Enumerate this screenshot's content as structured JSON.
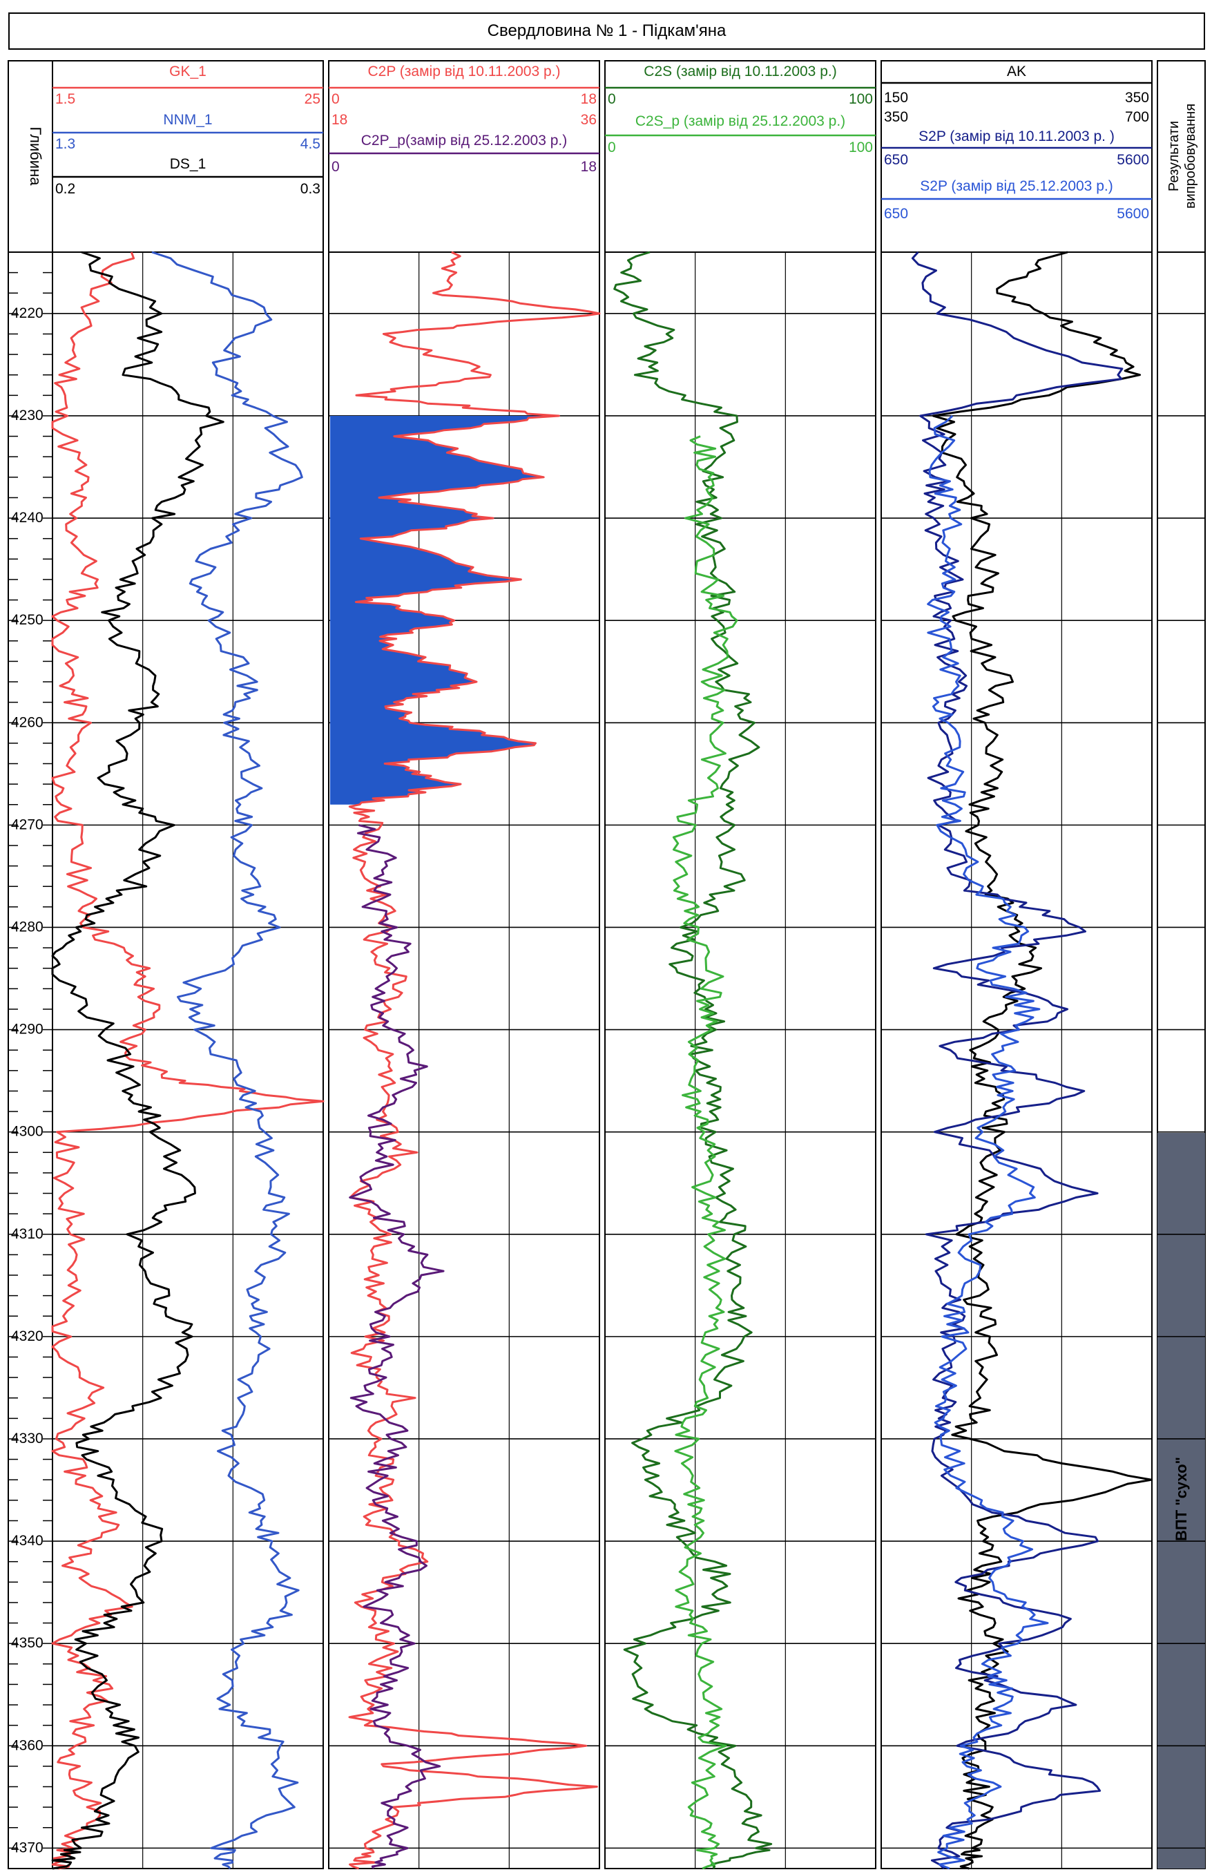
{
  "title": "Свердловина № 1 - Підкам'яна",
  "colors": {
    "gk": "#f04848",
    "nnm": "#3358c8",
    "ds": "#000000",
    "c2p": "#f04848",
    "c2p_p": "#5a1a78",
    "c2p_fill": "#2358c8",
    "c2s": "#1c6e1c",
    "c2s_p": "#3cb43c",
    "ak": "#000000",
    "s2p": "#16208a",
    "s2p_p": "#2a55d6",
    "result_band": "#5a6275"
  },
  "depth_track": {
    "label": "Глибина",
    "ticks": [
      "4220",
      "4230",
      "4240",
      "4250",
      "4260",
      "4270",
      "4280",
      "4290",
      "4300",
      "4310",
      "4320",
      "4330",
      "4340",
      "4350",
      "4360",
      "4370"
    ]
  },
  "track1": {
    "curves": [
      {
        "name": "GK_1",
        "min": "1.5",
        "max": "25"
      },
      {
        "name": "NNM_1",
        "min": "1.3",
        "max": "4.5"
      },
      {
        "name": "DS_1",
        "min": "0.2",
        "max": "0.3"
      }
    ]
  },
  "track2": {
    "curves": [
      {
        "name": "C2P  (замір від 10.11.2003 р.)",
        "min": "0",
        "max": "18",
        "min2": "18",
        "max2": "36"
      },
      {
        "name": "C2P_p(замір від 25.12.2003 р.)",
        "min": "0",
        "max": "18"
      }
    ]
  },
  "track3": {
    "curves": [
      {
        "name": "C2S (замір від 10.11.2003 р.)",
        "min": "0",
        "max": "100"
      },
      {
        "name": "C2S_p (замір від 25.12.2003 р.)",
        "min": "0",
        "max": "100"
      }
    ]
  },
  "track4": {
    "curves": [
      {
        "name": "AK",
        "min": "150",
        "max": "350",
        "min2": "350",
        "max2": "700"
      },
      {
        "name": "S2P (замір від 10.11.2003 р. )",
        "min": "650",
        "max": "5600"
      },
      {
        "name": "S2P (замір від 25.12.2003 р.)",
        "min": "650",
        "max": "5600"
      }
    ]
  },
  "results": {
    "header_line1": "Результати",
    "header_line2": "випробовування",
    "band_text": "ВПТ  \"сухо\""
  },
  "chart_data": {
    "type": "line",
    "title": "Свердловина № 1 - Підкам'яна",
    "ylabel": "Глибина",
    "ylim": [
      4372,
      4214
    ],
    "depth_ticks": [
      4220,
      4230,
      4240,
      4250,
      4260,
      4270,
      4280,
      4290,
      4300,
      4310,
      4320,
      4330,
      4340,
      4350,
      4360,
      4370
    ],
    "series": [
      {
        "name": "GK_1",
        "track": 1,
        "scale": [
          1.5,
          25
        ],
        "depth": [
          4214,
          4220,
          4226,
          4230,
          4236,
          4240,
          4246,
          4250,
          4256,
          4260,
          4266,
          4270,
          4276,
          4280,
          4284,
          4288,
          4292,
          4295,
          4297,
          4300,
          4305,
          4310,
          4315,
          4320,
          4325,
          4330,
          4334,
          4338,
          4342,
          4346,
          4350,
          4354,
          4358,
          4362,
          4366,
          4370,
          4372
        ],
        "values": [
          8,
          4,
          3,
          2,
          4,
          3,
          5,
          2,
          3,
          4,
          2,
          3,
          4,
          5,
          9,
          10,
          8,
          12,
          25,
          3,
          2,
          4,
          3,
          2,
          5,
          2,
          4,
          7,
          3,
          8,
          2,
          6,
          4,
          3,
          5,
          3,
          2
        ]
      },
      {
        "name": "NNM_1",
        "track": 1,
        "scale": [
          1.3,
          4.5
        ],
        "depth": [
          4214,
          4220,
          4226,
          4230,
          4236,
          4240,
          4246,
          4250,
          4256,
          4260,
          4266,
          4270,
          4276,
          4280,
          4286,
          4290,
          4296,
          4300,
          4306,
          4310,
          4316,
          4320,
          4326,
          4330,
          4336,
          4340,
          4346,
          4350,
          4356,
          4360,
          4366,
          4370,
          4372
        ],
        "values": [
          2.6,
          3.8,
          3.2,
          3.9,
          4.1,
          3.5,
          3.0,
          3.3,
          3.6,
          3.4,
          3.7,
          3.5,
          3.6,
          3.9,
          2.9,
          3.1,
          3.6,
          3.8,
          3.9,
          4.0,
          3.7,
          3.8,
          3.5,
          3.3,
          3.7,
          3.9,
          4.2,
          3.6,
          3.3,
          4.0,
          4.1,
          3.3,
          3.4
        ]
      },
      {
        "name": "DS_1",
        "track": 1,
        "scale": [
          0.2,
          0.3
        ],
        "depth": [
          4214,
          4220,
          4226,
          4230,
          4236,
          4240,
          4246,
          4250,
          4256,
          4260,
          4266,
          4270,
          4276,
          4280,
          4284,
          4290,
          4296,
          4300,
          4306,
          4310,
          4316,
          4320,
          4326,
          4330,
          4334,
          4340,
          4346,
          4350,
          4356,
          4360,
          4366,
          4370,
          4372
        ],
        "values": [
          0.21,
          0.24,
          0.23,
          0.26,
          0.25,
          0.24,
          0.23,
          0.22,
          0.24,
          0.23,
          0.22,
          0.24,
          0.23,
          0.21,
          0.2,
          0.22,
          0.23,
          0.24,
          0.25,
          0.23,
          0.24,
          0.25,
          0.24,
          0.21,
          0.22,
          0.24,
          0.23,
          0.21,
          0.22,
          0.23,
          0.22,
          0.21,
          0.2
        ]
      },
      {
        "name": "C2P",
        "track": 2,
        "scale": [
          0,
          18
        ],
        "fill_to_depth": 4268,
        "depth": [
          4214,
          4218,
          4220,
          4222,
          4226,
          4228,
          4230,
          4232,
          4236,
          4238,
          4240,
          4242,
          4246,
          4248,
          4250,
          4252,
          4256,
          4258,
          4260,
          4262,
          4264,
          4266,
          4268,
          4270,
          4274,
          4278,
          4282,
          4286,
          4290,
          4294,
          4298,
          4302,
          4306,
          4310,
          4314,
          4318,
          4322,
          4326,
          4330,
          4334,
          4338,
          4342,
          4346,
          4350,
          4354,
          4358,
          4360,
          4362,
          4364,
          4366,
          4370,
          4372
        ],
        "values": [
          9,
          7,
          18,
          3,
          11,
          2,
          15,
          5,
          14,
          4,
          11,
          3,
          12,
          2,
          9,
          3,
          10,
          4,
          6,
          14,
          4,
          8,
          2,
          3,
          2,
          4,
          3,
          5,
          3,
          4,
          3,
          5,
          2,
          4,
          3,
          4,
          2,
          5,
          3,
          4,
          3,
          6,
          2,
          4,
          3,
          2,
          17,
          3,
          18,
          4,
          3,
          2
        ]
      },
      {
        "name": "C2P_p",
        "track": 2,
        "scale": [
          0,
          18
        ],
        "depth": [
          4270,
          4274,
          4278,
          4282,
          4286,
          4290,
          4294,
          4298,
          4302,
          4306,
          4310,
          4314,
          4318,
          4322,
          4326,
          4330,
          4334,
          4338,
          4342,
          4346,
          4350,
          4354,
          4358,
          4362,
          4366,
          4370,
          4372
        ],
        "values": [
          2,
          4,
          3,
          5,
          3,
          4,
          6,
          3,
          4,
          2,
          5,
          7,
          3,
          4,
          2,
          5,
          3,
          4,
          6,
          3,
          5,
          4,
          3,
          7,
          4,
          5,
          3
        ]
      },
      {
        "name": "C2S",
        "track": 3,
        "scale": [
          0,
          100
        ],
        "depth": [
          4214,
          4218,
          4222,
          4226,
          4230,
          4236,
          4240,
          4246,
          4250,
          4256,
          4260,
          4266,
          4270,
          4276,
          4280,
          4284,
          4288,
          4292,
          4296,
          4300,
          4306,
          4310,
          4316,
          4320,
          4326,
          4330,
          4334,
          4338,
          4342,
          4346,
          4350,
          4356,
          4360,
          4366,
          4370,
          4372
        ],
        "values": [
          12,
          8,
          22,
          14,
          46,
          40,
          38,
          44,
          42,
          46,
          55,
          48,
          44,
          47,
          30,
          28,
          42,
          36,
          38,
          40,
          45,
          48,
          46,
          50,
          42,
          12,
          18,
          26,
          40,
          44,
          10,
          14,
          44,
          52,
          58,
          40
        ]
      },
      {
        "name": "C2S_p",
        "track": 3,
        "scale": [
          0,
          100
        ],
        "depth": [
          4232,
          4236,
          4240,
          4246,
          4250,
          4256,
          4260,
          4266,
          4270,
          4276,
          4280,
          4286,
          4290,
          4296,
          4300,
          4306,
          4310,
          4316,
          4320,
          4326,
          4330,
          4336,
          4340,
          4346,
          4350,
          4356,
          4360,
          4366,
          4370,
          4372
        ],
        "values": [
          36,
          40,
          34,
          38,
          44,
          40,
          42,
          38,
          30,
          28,
          34,
          40,
          36,
          32,
          38,
          36,
          40,
          42,
          38,
          36,
          30,
          34,
          32,
          30,
          36,
          38,
          40,
          34,
          38,
          36
        ]
      },
      {
        "name": "AK",
        "track": 4,
        "scale": [
          150,
          350
        ],
        "depth": [
          4214,
          4218,
          4222,
          4226,
          4230,
          4236,
          4240,
          4246,
          4250,
          4256,
          4260,
          4266,
          4270,
          4276,
          4280,
          4284,
          4288,
          4292,
          4296,
          4300,
          4306,
          4310,
          4316,
          4320,
          4326,
          4330,
          4334,
          4338,
          4342,
          4346,
          4350,
          4354,
          4358,
          4362,
          4366,
          4370,
          4372
        ],
        "values": [
          280,
          240,
          300,
          340,
          195,
          210,
          220,
          230,
          210,
          240,
          225,
          235,
          215,
          230,
          250,
          260,
          240,
          225,
          230,
          235,
          225,
          215,
          220,
          230,
          225,
          210,
          345,
          220,
          230,
          215,
          240,
          220,
          230,
          215,
          225,
          220,
          215
        ]
      },
      {
        "name": "S2P (замір від 10.11.2003 р. )",
        "track": 4,
        "scale": [
          650,
          5600
        ],
        "depth": [
          4214,
          4220,
          4226,
          4230,
          4236,
          4240,
          4246,
          4250,
          4256,
          4260,
          4266,
          4270,
          4276,
          4280,
          4284,
          4288,
          4292,
          4296,
          4300,
          4306,
          4310,
          4316,
          4320,
          4326,
          4330,
          4336,
          4340,
          4344,
          4348,
          4352,
          4356,
          4360,
          4364,
          4368,
          4372
        ],
        "values": [
          1400,
          1800,
          5200,
          1500,
          1700,
          1600,
          1900,
          1700,
          2000,
          1800,
          1700,
          1900,
          2100,
          4500,
          1600,
          4200,
          1700,
          4300,
          1800,
          4400,
          1700,
          2000,
          1900,
          1800,
          1700,
          2100,
          4600,
          1800,
          4200,
          1900,
          4100,
          2200,
          4700,
          1900,
          1800
        ]
      },
      {
        "name": "S2P (замір від 25.12.2003 р.)",
        "track": 4,
        "scale": [
          650,
          5600
        ],
        "depth": [
          4230,
          4236,
          4240,
          4246,
          4250,
          4256,
          4260,
          4266,
          4270,
          4276,
          4280,
          4284,
          4288,
          4292,
          4296,
          4300,
          4306,
          4310,
          4316,
          4320,
          4326,
          4330,
          4336,
          4340,
          4344,
          4348,
          4352,
          4356,
          4360,
          4364,
          4368,
          4372
        ],
        "values": [
          1800,
          1700,
          1900,
          1800,
          1700,
          1900,
          1800,
          2000,
          1900,
          2400,
          3200,
          2600,
          3400,
          2800,
          3000,
          2500,
          3500,
          2400,
          2100,
          2000,
          1800,
          1700,
          2400,
          3300,
          2800,
          3500,
          2600,
          3000,
          2200,
          2600,
          2000,
          1900
        ]
      }
    ]
  }
}
